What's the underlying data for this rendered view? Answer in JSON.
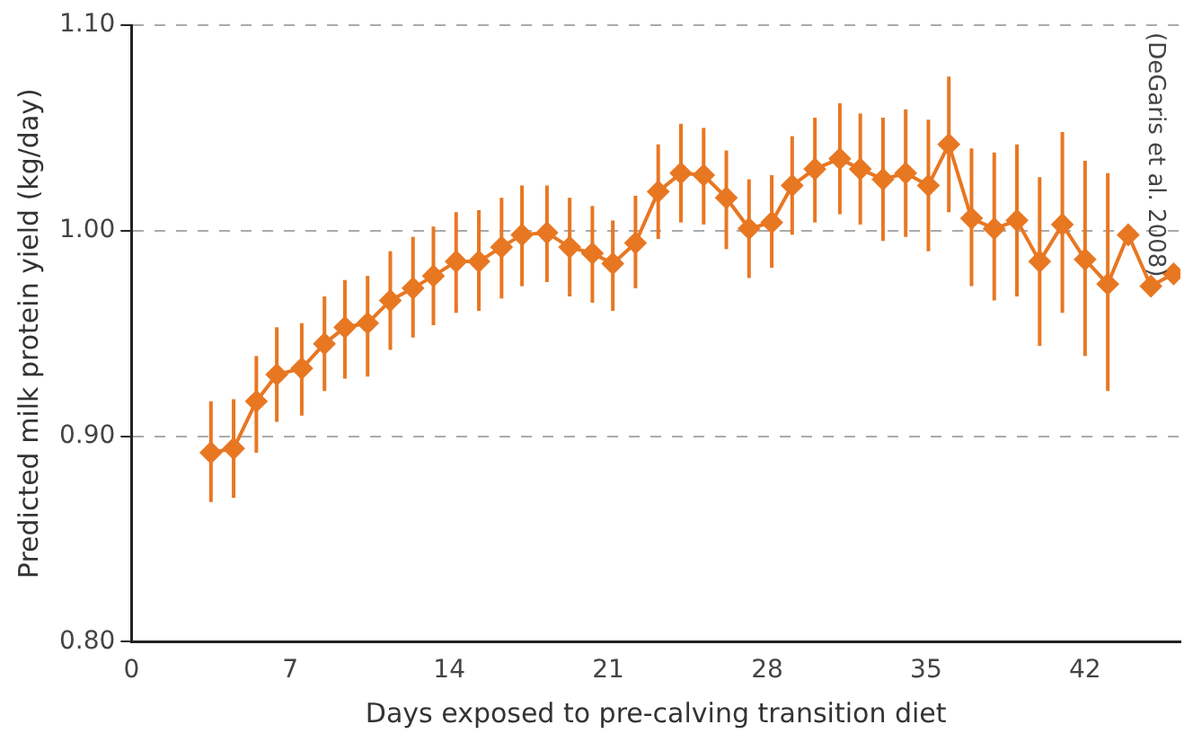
{
  "chart_data": {
    "type": "line",
    "xlabel": "Days exposed to pre-calving transition diet",
    "ylabel": "Predicted milk protein yield (kg/day)",
    "annotations": [
      "(DeGaris et al. 2008)"
    ],
    "xlim": [
      0,
      46.2
    ],
    "xticks": [
      0,
      7,
      14,
      21,
      28,
      35,
      42
    ],
    "ylim": [
      0.8,
      1.1
    ],
    "yticks": [
      {
        "value": 0.8,
        "label": "0.80"
      },
      {
        "value": 0.9,
        "label": "0.90"
      },
      {
        "value": 1.0,
        "label": "1.00"
      },
      {
        "value": 1.1,
        "label": "1.10"
      }
    ],
    "grid": "y",
    "legend": false,
    "marker": "diamond",
    "line_style": "solid",
    "series": [
      {
        "color": "#e87722",
        "x": [
          3.5,
          4.5,
          5.5,
          6.4,
          7.5,
          8.5,
          9.4,
          10.4,
          11.4,
          12.4,
          13.3,
          14.3,
          15.3,
          16.3,
          17.2,
          18.3,
          19.3,
          20.3,
          21.2,
          22.2,
          23.2,
          24.2,
          25.2,
          26.2,
          27.2,
          28.2,
          29.1,
          30.1,
          31.2,
          32.1,
          33.1,
          34.1,
          35.1,
          36.0,
          37.0,
          38.0,
          39.0,
          40.0,
          41.0,
          42.0,
          43.0,
          43.9,
          44.9,
          45.9
        ],
        "values": [
          0.892,
          0.894,
          0.917,
          0.93,
          0.933,
          0.945,
          0.953,
          0.955,
          0.966,
          0.972,
          0.978,
          0.985,
          0.985,
          0.992,
          0.998,
          0.999,
          0.992,
          0.989,
          0.984,
          0.994,
          1.019,
          1.028,
          1.027,
          1.016,
          1.001,
          1.004,
          1.022,
          1.03,
          1.035,
          1.03,
          1.025,
          1.028,
          1.022,
          1.042,
          1.006,
          1.001,
          1.005,
          0.985,
          1.003,
          0.986,
          0.974,
          0.998,
          0.973,
          0.979
        ],
        "errors": [
          [
            0.868,
            0.917
          ],
          [
            0.87,
            0.918
          ],
          [
            0.892,
            0.939
          ],
          [
            0.907,
            0.953
          ],
          [
            0.91,
            0.955
          ],
          [
            0.922,
            0.968
          ],
          [
            0.928,
            0.976
          ],
          [
            0.929,
            0.978
          ],
          [
            0.942,
            0.99
          ],
          [
            0.948,
            0.997
          ],
          [
            0.954,
            1.002
          ],
          [
            0.96,
            1.009
          ],
          [
            0.961,
            1.01
          ],
          [
            0.967,
            1.016
          ],
          [
            0.973,
            1.022
          ],
          [
            0.975,
            1.022
          ],
          [
            0.968,
            1.016
          ],
          [
            0.965,
            1.012
          ],
          [
            0.961,
            1.005
          ],
          [
            0.972,
            1.017
          ],
          [
            0.996,
            1.042
          ],
          [
            1.004,
            1.052
          ],
          [
            1.003,
            1.05
          ],
          [
            0.991,
            1.039
          ],
          [
            0.977,
            1.025
          ],
          [
            0.982,
            1.027
          ],
          [
            0.998,
            1.046
          ],
          [
            1.004,
            1.055
          ],
          [
            1.008,
            1.062
          ],
          [
            1.003,
            1.057
          ],
          [
            0.995,
            1.055
          ],
          [
            0.997,
            1.059
          ],
          [
            0.99,
            1.054
          ],
          [
            1.009,
            1.075
          ],
          [
            0.973,
            1.04
          ],
          [
            0.966,
            1.038
          ],
          [
            0.968,
            1.042
          ],
          [
            0.944,
            1.026
          ],
          [
            0.96,
            1.048
          ],
          [
            0.939,
            1.034
          ],
          [
            0.922,
            1.028
          ],
          null,
          null,
          null
        ]
      }
    ]
  }
}
